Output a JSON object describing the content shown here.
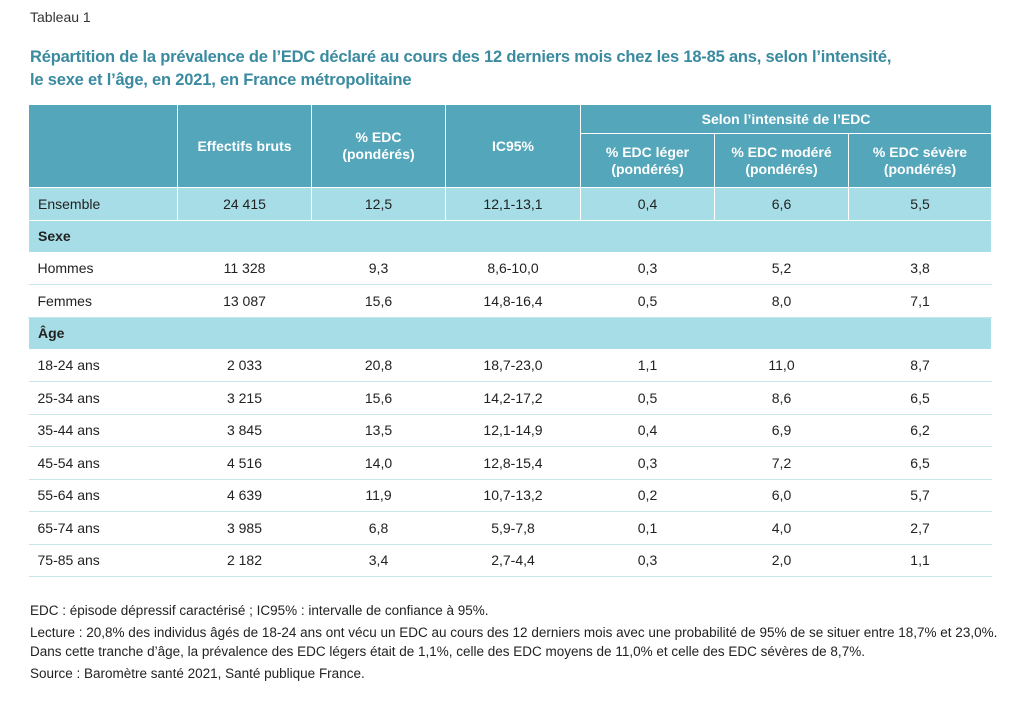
{
  "label": "Tableau 1",
  "title_line1": "Répartition de la prévalence de l’EDC déclaré au cours des 12 derniers mois chez les 18-85 ans, selon l’intensité,",
  "title_line2": "le sexe et l’âge, en 2021, en France métropolitaine",
  "headers": {
    "effectifs": "Effectifs bruts",
    "edc": "% EDC (pondérés)",
    "ic95": "IC95%",
    "intensite": "Selon l’intensité de l’EDC",
    "leger": "% EDC léger (pondérés)",
    "modere": "% EDC modéré (pondérés)",
    "severe": "% EDC sévère (pondérés)"
  },
  "rows": [
    {
      "label": "Ensemble",
      "effectifs": "24 415",
      "edc": "12,5",
      "ic": "12,1-13,1",
      "leger": "0,4",
      "modere": "6,6",
      "severe": "5,5"
    },
    {
      "section": "Sexe"
    },
    {
      "label": "Hommes",
      "effectifs": "11 328",
      "edc": "9,3",
      "ic": "8,6-10,0",
      "leger": "0,3",
      "modere": "5,2",
      "severe": "3,8"
    },
    {
      "label": "Femmes",
      "effectifs": "13 087",
      "edc": "15,6",
      "ic": "14,8-16,4",
      "leger": "0,5",
      "modere": "8,0",
      "severe": "7,1"
    },
    {
      "section": "Âge"
    },
    {
      "label": "18-24 ans",
      "effectifs": "2 033",
      "edc": "20,8",
      "ic": "18,7-23,0",
      "leger": "1,1",
      "modere": "11,0",
      "severe": "8,7"
    },
    {
      "label": "25-34 ans",
      "effectifs": "3 215",
      "edc": "15,6",
      "ic": "14,2-17,2",
      "leger": "0,5",
      "modere": "8,6",
      "severe": "6,5"
    },
    {
      "label": "35-44 ans",
      "effectifs": "3 845",
      "edc": "13,5",
      "ic": "12,1-14,9",
      "leger": "0,4",
      "modere": "6,9",
      "severe": "6,2"
    },
    {
      "label": "45-54 ans",
      "effectifs": "4 516",
      "edc": "14,0",
      "ic": "12,8-15,4",
      "leger": "0,3",
      "modere": "7,2",
      "severe": "6,5"
    },
    {
      "label": "55-64 ans",
      "effectifs": "4 639",
      "edc": "11,9",
      "ic": "10,7-13,2",
      "leger": "0,2",
      "modere": "6,0",
      "severe": "5,7"
    },
    {
      "label": "65-74 ans",
      "effectifs": "3 985",
      "edc": "6,8",
      "ic": "5,9-7,8",
      "leger": "0,1",
      "modere": "4,0",
      "severe": "2,7"
    },
    {
      "label": "75-85 ans",
      "effectifs": "2 182",
      "edc": "3,4",
      "ic": "2,7-4,4",
      "leger": "0,3",
      "modere": "2,0",
      "severe": "1,1"
    }
  ],
  "footnotes": {
    "abbr": "EDC : épisode dépressif caractérisé ; IC95% : intervalle de confiance à 95%.",
    "lecture": "Lecture : 20,8% des individus âgés de 18-24 ans ont vécu un EDC au cours des 12 derniers mois avec une probabilité de 95% de se situer entre 18,7% et 23,0%. Dans cette tranche d’âge, la prévalence des EDC légers était de 1,1%, celle des EDC moyens de 11,0% et celle des EDC sévères de 8,7%.",
    "source": "Source : Baromètre santé 2021, Santé publique France."
  },
  "colors": {
    "title": "#3a8aa0",
    "header_bg": "#54a6ba",
    "highlight_row_bg": "#a7dde6"
  }
}
